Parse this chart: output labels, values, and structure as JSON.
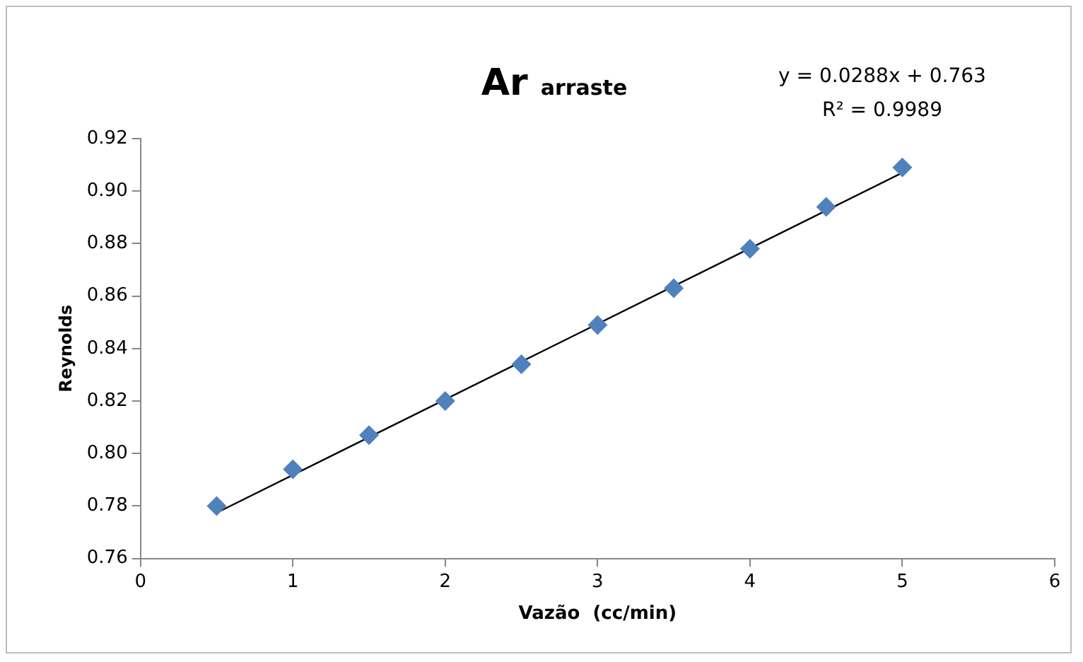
{
  "chart_data": {
    "type": "scatter",
    "title": "Ar $_{arraste}$",
    "xlabel": "Vazão  (cc/min)",
    "ylabel": "Reynolds",
    "annotations": [
      "y = 0.0288x + 0.763",
      "R² = 0.9989"
    ],
    "series": [
      {
        "color": "#4f81bd",
        "x": [
          0.5,
          1,
          1.5,
          2,
          2.5,
          3,
          3.5,
          4,
          4.5,
          5
        ],
        "values": [
          0.78,
          0.794,
          0.807,
          0.82,
          0.834,
          0.849,
          0.863,
          0.878,
          0.894,
          0.909
        ],
        "marker": "diamond"
      },
      {
        "type": "line",
        "color": "#000000",
        "x": [
          0.5,
          5
        ],
        "values": [
          0.7774,
          0.907
        ],
        "marker": "none"
      }
    ],
    "xlim": [
      0,
      6
    ],
    "xticks": [
      0,
      1,
      2,
      3,
      4,
      5,
      6
    ],
    "ylim": [
      0.76,
      0.92
    ],
    "yticks": [
      {
        "value": 0.76,
        "label": "0.76"
      },
      {
        "value": 0.78,
        "label": "0.78"
      },
      {
        "value": 0.8,
        "label": "0.80"
      },
      {
        "value": 0.82,
        "label": "0.82"
      },
      {
        "value": 0.84,
        "label": "0.84"
      },
      {
        "value": 0.86,
        "label": "0.86"
      },
      {
        "value": 0.88,
        "label": "0.88"
      },
      {
        "value": 0.9,
        "label": "0.90"
      },
      {
        "value": 0.92,
        "label": "0.92"
      }
    ],
    "grid": false,
    "legend": false
  }
}
